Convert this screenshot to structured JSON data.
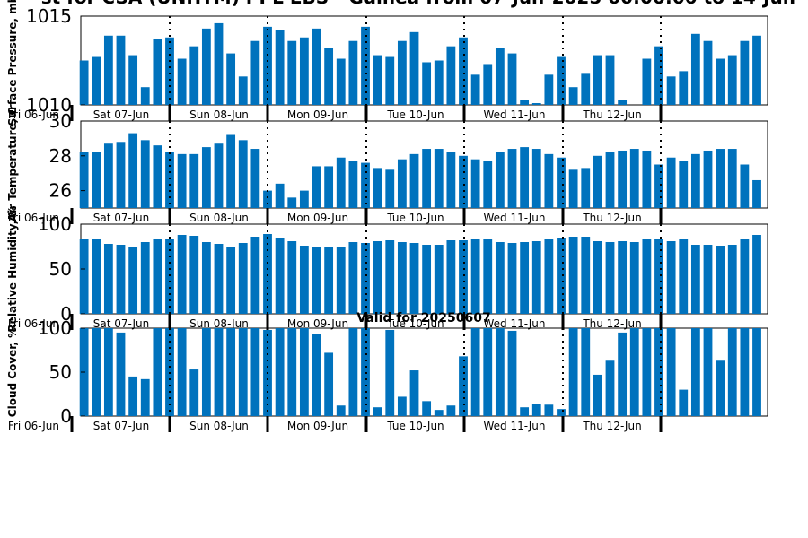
{
  "figure": {
    "title": "st for CSA (UNHTM) PPL EBS  - Guinea from 07-Jun-2025 00:00:00 to 14-Jun-",
    "subtitle": "Valid for 20250607",
    "bar_color": "#0072bd",
    "day_labels": [
      "Fri 06-Jun",
      "Sat 07-Jun",
      "Sun 08-Jun",
      "Mon 09-Jun",
      "Tue 10-Jun",
      "Wed 11-Jun",
      "Thu 12-Jun"
    ]
  },
  "chart_data": [
    {
      "type": "bar",
      "ylabel": "Surface Pressure, mb",
      "ylim": [
        1010,
        1015
      ],
      "yticks": [
        1010,
        1015
      ],
      "values": [
        1012.5,
        1012.7,
        1013.9,
        1013.9,
        1012.8,
        1011.0,
        1013.7,
        1013.8,
        1012.6,
        1013.3,
        1014.3,
        1014.6,
        1012.9,
        1011.6,
        1013.6,
        1014.4,
        1014.2,
        1013.6,
        1013.8,
        1014.3,
        1013.2,
        1012.6,
        1013.6,
        1014.4,
        1012.8,
        1012.7,
        1013.6,
        1014.1,
        1012.4,
        1012.5,
        1013.3,
        1013.8,
        1011.7,
        1012.3,
        1013.2,
        1012.9,
        1010.3,
        1010.1,
        1011.7,
        1012.7,
        1011.0,
        1011.8,
        1012.8,
        1012.8,
        1010.3,
        1010.0,
        1012.6,
        1013.3,
        1011.6,
        1011.9,
        1014.0,
        1013.6,
        1012.6,
        1012.8,
        1013.6,
        1013.9
      ]
    },
    {
      "type": "bar",
      "ylabel": "Air Temperature, C",
      "ylim": [
        25,
        30
      ],
      "yticks": [
        26,
        28,
        30
      ],
      "values": [
        28.2,
        28.2,
        28.7,
        28.8,
        29.3,
        28.9,
        28.6,
        28.2,
        28.1,
        28.1,
        28.5,
        28.7,
        29.2,
        28.9,
        28.4,
        26.0,
        26.4,
        25.6,
        26.0,
        27.4,
        27.4,
        27.9,
        27.7,
        27.6,
        27.3,
        27.2,
        27.8,
        28.1,
        28.4,
        28.4,
        28.2,
        28.0,
        27.8,
        27.7,
        28.2,
        28.4,
        28.5,
        28.4,
        28.1,
        27.9,
        27.2,
        27.3,
        28.0,
        28.2,
        28.3,
        28.4,
        28.3,
        27.5,
        27.9,
        27.7,
        28.1,
        28.3,
        28.4,
        28.4,
        27.5,
        26.6
      ]
    },
    {
      "type": "bar",
      "ylabel": "Relative Humidity, %",
      "ylim": [
        0,
        100
      ],
      "yticks": [
        0,
        50,
        100
      ],
      "values": [
        83,
        83,
        78,
        77,
        75,
        80,
        84,
        83,
        88,
        87,
        80,
        78,
        75,
        79,
        86,
        89,
        85,
        81,
        76,
        75,
        75,
        75,
        80,
        79,
        81,
        82,
        80,
        79,
        77,
        77,
        82,
        82,
        83,
        84,
        80,
        79,
        80,
        81,
        84,
        85,
        86,
        86,
        81,
        80,
        81,
        80,
        83,
        83,
        81,
        83,
        77,
        77,
        76,
        77,
        83,
        88
      ]
    },
    {
      "type": "bar",
      "ylabel": "Cloud Cover, %",
      "ylim": [
        0,
        100
      ],
      "yticks": [
        0,
        50,
        100
      ],
      "values": [
        100,
        100,
        100,
        95,
        45,
        42,
        100,
        100,
        100,
        53,
        100,
        100,
        100,
        100,
        100,
        98,
        100,
        100,
        100,
        93,
        72,
        12,
        100,
        100,
        10,
        98,
        22,
        52,
        17,
        7,
        12,
        68,
        100,
        100,
        100,
        97,
        10,
        14,
        13,
        8,
        100,
        100,
        47,
        63,
        95,
        100,
        100,
        100,
        100,
        30,
        100,
        100,
        63,
        100,
        100,
        100
      ]
    }
  ]
}
